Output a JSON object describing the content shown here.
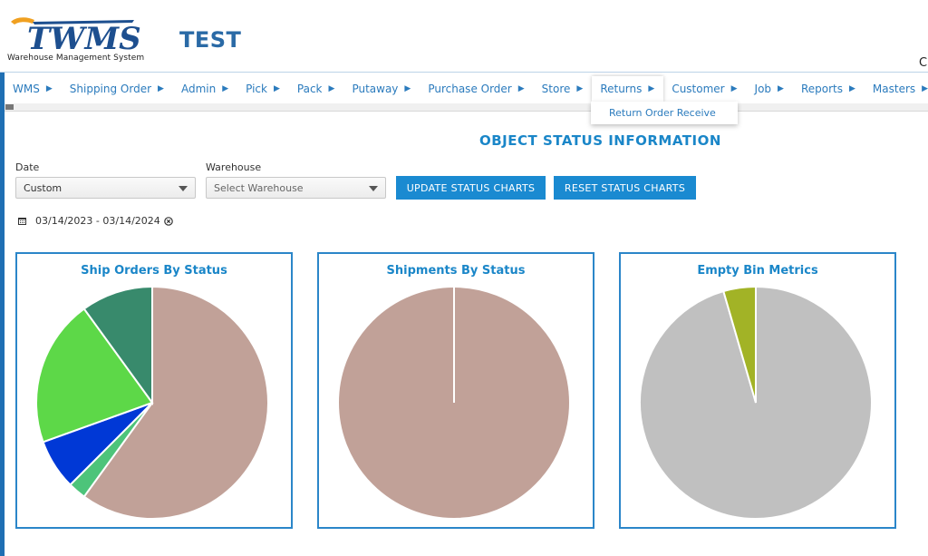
{
  "header": {
    "logo_text": "TWMS",
    "logo_subtitle": "Warehouse Management System",
    "app_title": "TEST",
    "edge_text": "C"
  },
  "nav": {
    "items": [
      {
        "label": "WMS"
      },
      {
        "label": "Shipping Order"
      },
      {
        "label": "Admin"
      },
      {
        "label": "Pick"
      },
      {
        "label": "Pack"
      },
      {
        "label": "Putaway"
      },
      {
        "label": "Purchase Order"
      },
      {
        "label": "Store"
      },
      {
        "label": "Returns",
        "active": true
      },
      {
        "label": "Customer"
      },
      {
        "label": "Job"
      },
      {
        "label": "Reports"
      },
      {
        "label": "Masters"
      }
    ],
    "arrow": "▶",
    "dropdown": {
      "items": [
        "Return Order Receive"
      ]
    }
  },
  "page": {
    "title": "OBJECT STATUS INFORMATION",
    "filters": {
      "date_label": "Date",
      "date_value": "Custom",
      "warehouse_label": "Warehouse",
      "warehouse_placeholder": "Select Warehouse"
    },
    "buttons": {
      "update": "UPDATE STATUS CHARTS",
      "reset": "RESET STATUS CHARTS"
    },
    "date_range": "03/14/2023 - 03/14/2024"
  },
  "chart_data": [
    {
      "type": "pie",
      "title": "Ship Orders By Status",
      "values": [
        60,
        2.5,
        7,
        20.5,
        10
      ],
      "colors": [
        "#c1a198",
        "#4dc47a",
        "#0038d6",
        "#5dd848",
        "#388a6c"
      ]
    },
    {
      "type": "pie",
      "title": "Shipments By Status",
      "values": [
        100
      ],
      "colors": [
        "#c1a198"
      ]
    },
    {
      "type": "pie",
      "title": "Empty Bin Metrics",
      "values": [
        95.5,
        4.5
      ],
      "colors": [
        "#c0c0c0",
        "#a2b326"
      ]
    }
  ]
}
